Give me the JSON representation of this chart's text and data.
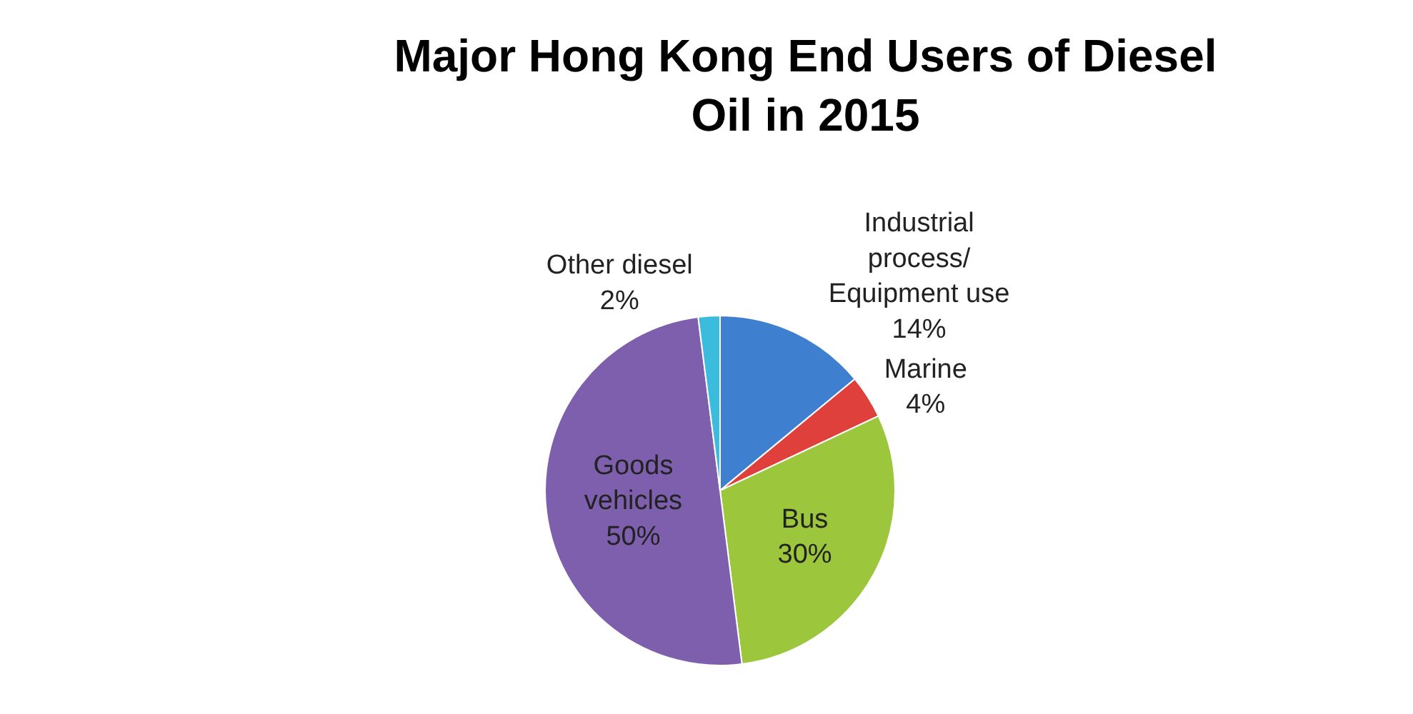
{
  "chart_data": {
    "type": "pie",
    "title": "Major Hong Kong End Users of Diesel Oil in 2015",
    "categories": [
      "Industrial process/ Equipment use",
      "Marine",
      "Bus",
      "Goods vehicles",
      "Other diesel"
    ],
    "values": [
      14,
      4,
      30,
      50,
      2
    ],
    "value_labels": [
      "14%",
      "4%",
      "30%",
      "50%",
      "2%"
    ],
    "colors": [
      "#3f7fcf",
      "#e0403c",
      "#9cc63c",
      "#7e5fae",
      "#3cbcdc"
    ],
    "legend": false
  }
}
